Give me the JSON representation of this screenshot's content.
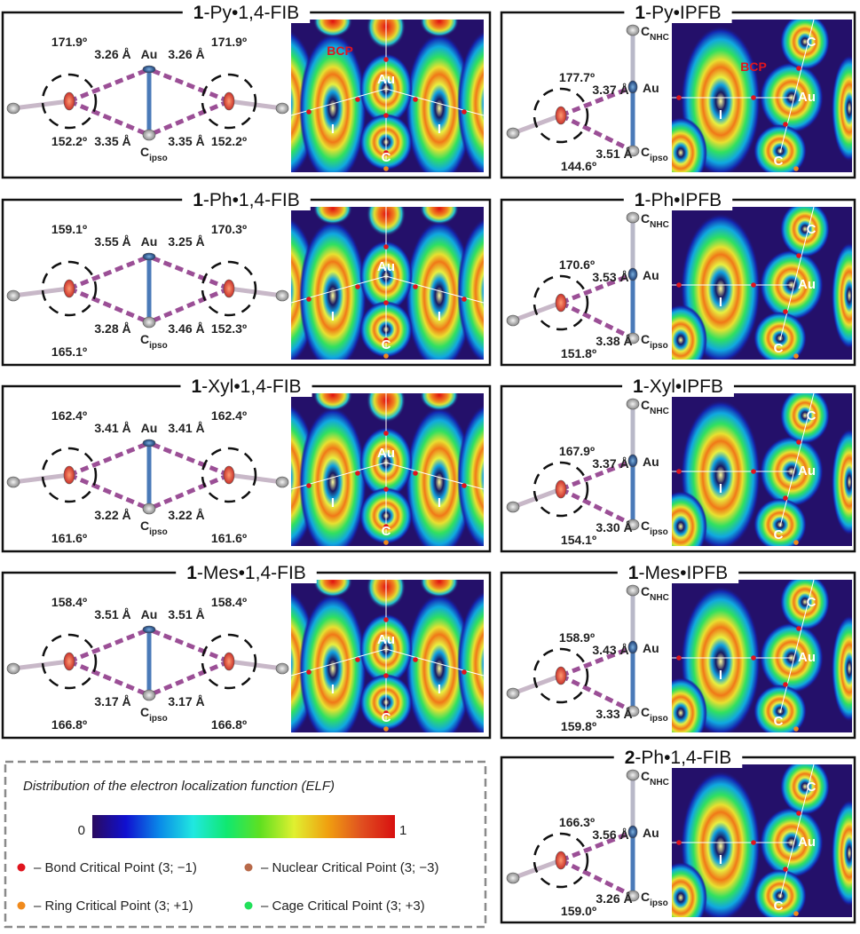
{
  "colors": {
    "bond_dash": "#9b4f96",
    "frame": "#111111",
    "legend_frame": "#8a8a8a",
    "bcp": "#e0141e",
    "ncp": "#b86a4a",
    "rcp": "#f08a1c",
    "ccp": "#22e05a",
    "iodine": "#e05a3a",
    "gold": "#2a5aa0",
    "carbon": "#b8b8b8",
    "map_bg": "#24106a"
  },
  "labels": {
    "au": "Au",
    "c_ipso": {
      "main": "C",
      "sub": "ipso"
    },
    "c_nhc": {
      "main": "C",
      "sub": "NHC"
    },
    "map_au": "Au",
    "map_c": "C",
    "map_i": "I",
    "bcp": "BCP"
  },
  "symmetric_panels": [
    {
      "num": "1",
      "rest": "-Py•1,4-FIB",
      "bcp_label": true,
      "top_left_angle": "171.9º",
      "top_left_dist": "3.26 Å",
      "top_right_dist": "3.26 Å",
      "top_right_angle": "171.9º",
      "bottom_left_angle": "152.2º",
      "bottom_left_dist": "3.35 Å",
      "bottom_right_dist": "3.35 Å",
      "bottom_right_angle": "152.2º"
    },
    {
      "num": "1",
      "rest": "-Ph•1,4-FIB",
      "bcp_label": false,
      "top_left_angle": "159.1º",
      "top_left_dist": "3.55 Å",
      "top_right_dist": "3.25 Å",
      "top_right_angle": "170.3º",
      "bottom_left_angle": "165.1º",
      "bottom_left_dist": "3.28 Å",
      "bottom_right_dist": "3.46 Å",
      "bottom_right_angle": "152.3º"
    },
    {
      "num": "1",
      "rest": "-Xyl•1,4-FIB",
      "bcp_label": false,
      "top_left_angle": "162.4º",
      "top_left_dist": "3.41 Å",
      "top_right_dist": "3.41 Å",
      "top_right_angle": "162.4º",
      "bottom_left_angle": "161.6º",
      "bottom_left_dist": "3.22 Å",
      "bottom_right_dist": "3.22 Å",
      "bottom_right_angle": "161.6º"
    },
    {
      "num": "1",
      "rest": "-Mes•1,4-FIB",
      "bcp_label": false,
      "top_left_angle": "158.4º",
      "top_left_dist": "3.51 Å",
      "top_right_dist": "3.51 Å",
      "top_right_angle": "158.4º",
      "bottom_left_angle": "166.8º",
      "bottom_left_dist": "3.17 Å",
      "bottom_right_dist": "3.17 Å",
      "bottom_right_angle": "166.8º"
    }
  ],
  "single_panels": [
    {
      "num": "1",
      "rest": "-Py•IPFB",
      "bcp_label": true,
      "top_angle": "177.7º",
      "top_dist": "3.37 Å",
      "bottom_dist": "3.51 Å",
      "bottom_angle": "144.6º"
    },
    {
      "num": "1",
      "rest": "-Ph•IPFB",
      "bcp_label": false,
      "top_angle": "170.6º",
      "top_dist": "3.53 Å",
      "bottom_dist": "3.38 Å",
      "bottom_angle": "151.8º"
    },
    {
      "num": "1",
      "rest": "-Xyl•IPFB",
      "bcp_label": false,
      "top_angle": "167.9º",
      "top_dist": "3.37 Å",
      "bottom_dist": "3.30 Å",
      "bottom_angle": "154.1º"
    },
    {
      "num": "1",
      "rest": "-Mes•IPFB",
      "bcp_label": false,
      "top_angle": "158.9º",
      "top_dist": "3.43 Å",
      "bottom_dist": "3.33 Å",
      "bottom_angle": "159.8º"
    },
    {
      "num": "2",
      "rest": "-Ph•1,4-FIB",
      "bcp_label": false,
      "top_angle": "166.3º",
      "top_dist": "3.56 Å",
      "bottom_dist": "3.26 Å",
      "bottom_angle": "159.0º"
    }
  ],
  "legend": {
    "title": "Distribution of the electron localization function (ELF)",
    "scale_min": "0",
    "scale_max": "1",
    "scale_colors": [
      "#2a0a5e",
      "#1010d0",
      "#0a8ae8",
      "#20e8e0",
      "#10e870",
      "#60e020",
      "#e0f030",
      "#f0a010",
      "#e05020",
      "#d81010"
    ],
    "items": [
      {
        "label": "– Bond Critical Point (3; −1)",
        "color": "#e0141e"
      },
      {
        "label": "– Nuclear Critical Point (3; −3)",
        "color": "#b86a4a"
      },
      {
        "label": "– Ring Critical Point (3; +1)",
        "color": "#f08a1c"
      },
      {
        "label": "– Cage Critical Point (3; +3)",
        "color": "#22e05a"
      }
    ]
  }
}
